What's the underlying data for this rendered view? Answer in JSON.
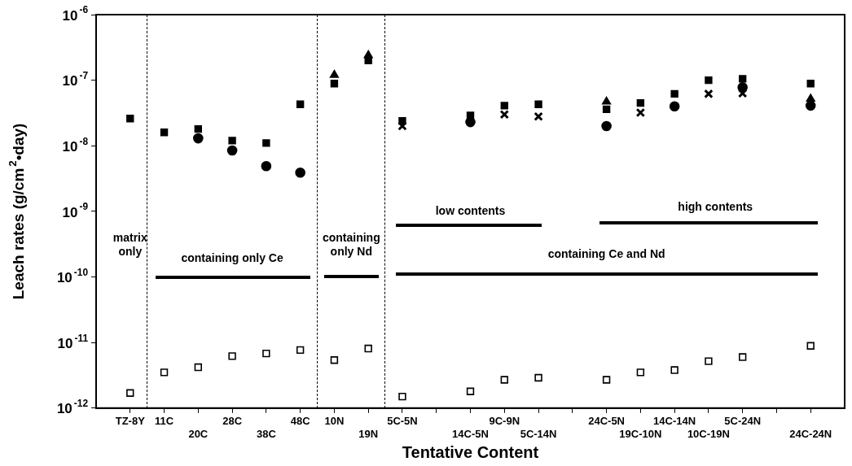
{
  "chart_data": {
    "type": "scatter",
    "xlabel": "Tentative Content",
    "ylabel": "Leach rates (g/cm$^{2}$•day)",
    "categories": [
      null,
      "TZ-8Y",
      "11C",
      "20C",
      "28C",
      "38C",
      "48C",
      "10N",
      "19N",
      "5C-5N",
      null,
      "14C-5N",
      "9C-9N",
      "5C-14N",
      null,
      "24C-5N",
      "19C-10N",
      "14C-14N",
      "10C-19N",
      "5C-24N",
      null,
      "24C-24N",
      null
    ],
    "series": [
      {
        "color": "#000000",
        "marker": "square",
        "values": [
          null,
          2.6e-08,
          1.6e-08,
          1.8e-08,
          1.2e-08,
          1.1e-08,
          4.3e-08,
          8.9e-08,
          2e-07,
          2.4e-08,
          null,
          2.9e-08,
          4.1e-08,
          4.3e-08,
          null,
          3.6e-08,
          4.5e-08,
          6.2e-08,
          1e-07,
          1.05e-07,
          null,
          8.9e-08,
          null
        ]
      },
      {
        "color": "#000000",
        "marker": "circle",
        "values": [
          null,
          null,
          null,
          1.3e-08,
          8.5e-09,
          4.9e-09,
          3.9e-09,
          null,
          null,
          null,
          null,
          2.3e-08,
          null,
          null,
          null,
          2e-08,
          null,
          4e-08,
          null,
          7.8e-08,
          null,
          4.1e-08,
          null
        ]
      },
      {
        "color": "#000000",
        "marker": "triangle",
        "values": [
          null,
          null,
          null,
          null,
          null,
          null,
          null,
          1.2e-07,
          2.4e-07,
          null,
          null,
          null,
          null,
          null,
          null,
          4.7e-08,
          null,
          null,
          null,
          null,
          null,
          5.2e-08,
          null
        ]
      },
      {
        "color": "#000000",
        "marker": "cross",
        "values": [
          null,
          null,
          null,
          null,
          null,
          null,
          null,
          null,
          null,
          2e-08,
          null,
          null,
          3e-08,
          2.8e-08,
          null,
          null,
          3.2e-08,
          null,
          6.2e-08,
          6.3e-08,
          null,
          null,
          null
        ]
      },
      {
        "color": "#000000",
        "marker": "square",
        "values": [
          null,
          1.7e-12,
          3.5e-12,
          4.2e-12,
          6.2e-12,
          6.8e-12,
          7.7e-12,
          5.4e-12,
          8.1e-12,
          1.5e-12,
          null,
          1.8e-12,
          2.7e-12,
          2.9e-12,
          null,
          2.7e-12,
          3.5e-12,
          3.8e-12,
          5.2e-12,
          6e-12,
          null,
          8.9e-12,
          null
        ]
      }
    ],
    "log": "y",
    "ylim": [
      1e-12,
      1e-06
    ],
    "yticks": [
      {
        "value": 1e-12,
        "label": "10$^{-12}$"
      },
      {
        "value": 1e-11,
        "label": "10$^{-11}$"
      },
      {
        "value": 1e-10,
        "label": "10$^{-10}$"
      },
      {
        "value": 1e-09,
        "label": "10$^{-9}$"
      },
      {
        "value": 1e-08,
        "label": "10$^{-8}$"
      },
      {
        "value": 1e-07,
        "label": "10$^{-7}$"
      },
      {
        "value": 1e-06,
        "label": "10$^{-6}$"
      }
    ],
    "grid": false,
    "legend": false,
    "annotations": [
      "matrix only",
      "containing only Ce",
      "containing only Nd",
      "low contents",
      "high contents",
      "containing Ce and Nd"
    ]
  }
}
